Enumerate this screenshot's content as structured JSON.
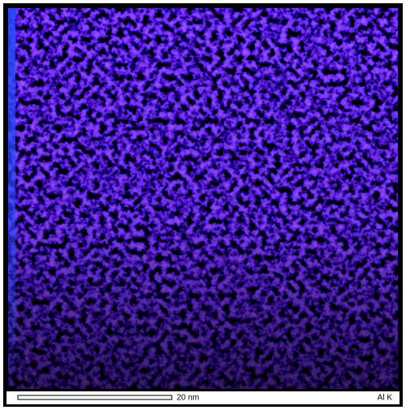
{
  "scale_bar": {
    "label": "20 nm"
  },
  "element_label": "Al K"
}
